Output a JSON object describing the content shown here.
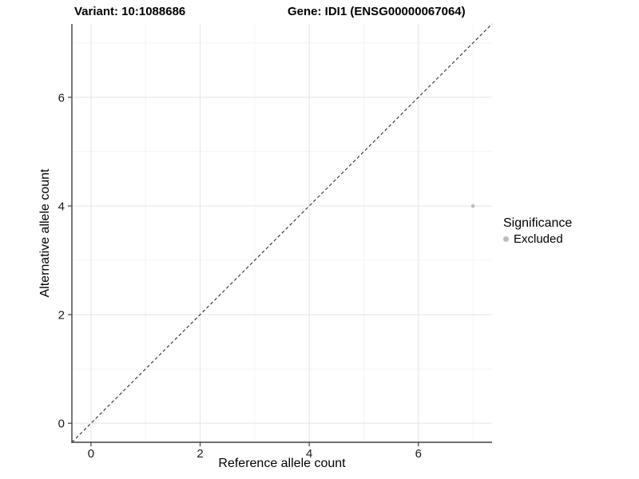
{
  "header": {
    "title_left": "Variant: 10:1088686",
    "title_right": "Gene: IDI1 (ENSG00000067064)"
  },
  "legend": {
    "title": "Significance",
    "items": [
      {
        "label": "Excluded",
        "color": "#bdbdbd"
      }
    ]
  },
  "chart_data": {
    "type": "scatter",
    "title": "Variant: 10:1088686  /  Gene: IDI1 (ENSG00000067064)",
    "xlabel": "Reference allele count",
    "ylabel": "Alternative allele count",
    "xlim": [
      -0.35,
      7.35
    ],
    "ylim": [
      -0.35,
      7.35
    ],
    "x_major_ticks": [
      0,
      2,
      4,
      6
    ],
    "y_major_ticks": [
      0,
      2,
      4,
      6
    ],
    "x_minor_ticks": [
      1,
      3,
      5,
      7
    ],
    "y_minor_ticks": [
      1,
      3,
      5,
      7
    ],
    "grid": true,
    "legend_position": "right",
    "series": [
      {
        "name": "Excluded",
        "color": "#bdbdbd",
        "points": [
          {
            "x": 7,
            "y": 4
          }
        ]
      }
    ],
    "identity_line": {
      "equation": "y = x",
      "style": "dashed",
      "color": "#1a1a1a"
    },
    "colors": {
      "grid_major": "#e4e4e4",
      "grid_minor": "#f2f2f2",
      "axis_line": "#404040",
      "tick_text": "#1a1a1a",
      "point": "#bdbdbd"
    }
  }
}
